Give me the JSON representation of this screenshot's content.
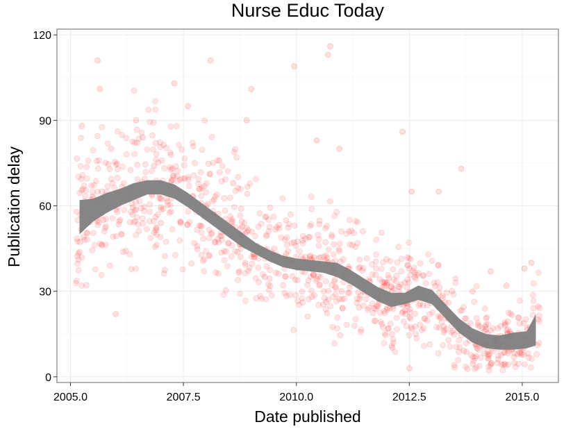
{
  "chart_data": {
    "type": "scatter",
    "title": "Nurse Educ Today",
    "xlabel": "Date published",
    "ylabel": "Publication delay",
    "xlim": [
      2004.7,
      2015.8
    ],
    "ylim": [
      -2,
      122
    ],
    "xticks": [
      2005.0,
      2007.5,
      2010.0,
      2012.5,
      2015.0
    ],
    "xtick_labels": [
      "2005.0",
      "2007.5",
      "2010.0",
      "2012.5",
      "2015.0"
    ],
    "yticks": [
      0,
      30,
      60,
      90,
      120
    ],
    "ytick_labels": [
      "0",
      "30",
      "60",
      "90",
      "120"
    ],
    "grid": true,
    "legend": "none",
    "colors": {
      "points": "#ff0000",
      "smooth": "#808080",
      "panel_border": "#7f7f7f",
      "grid": "#ebebeb"
    },
    "smooth": {
      "x": [
        2005.2,
        2005.5,
        2005.8,
        2006.1,
        2006.4,
        2006.7,
        2007.0,
        2007.3,
        2007.6,
        2007.9,
        2008.2,
        2008.5,
        2008.8,
        2009.1,
        2009.4,
        2009.7,
        2010.0,
        2010.3,
        2010.6,
        2010.9,
        2011.2,
        2011.5,
        2011.8,
        2012.1,
        2012.4,
        2012.7,
        2013.0,
        2013.3,
        2013.6,
        2013.9,
        2014.2,
        2014.5,
        2014.8,
        2015.1,
        2015.3
      ],
      "y": [
        56,
        58.5,
        61,
        63,
        65,
        66.5,
        66.5,
        65,
        62,
        58.5,
        55,
        51.5,
        48,
        45,
        42.5,
        40.5,
        39.5,
        39,
        38.5,
        37.5,
        35,
        32,
        29,
        27,
        27.5,
        29.5,
        28,
        23,
        18,
        14.5,
        12.5,
        12,
        12.5,
        13,
        16.5
      ],
      "lower": [
        50,
        54.5,
        57.5,
        60,
        62,
        64,
        64,
        62.5,
        59.5,
        56,
        52.5,
        49,
        45.5,
        43,
        40.5,
        38.5,
        37.5,
        37,
        36.5,
        35,
        32.5,
        29.5,
        26.5,
        24.5,
        25.5,
        27,
        25.5,
        20.5,
        15.5,
        12,
        10,
        9.5,
        9.5,
        10,
        11
      ],
      "upper": [
        62,
        62.5,
        64.5,
        66,
        68,
        69,
        69,
        67.5,
        64.5,
        61,
        57.5,
        54,
        50.5,
        47,
        44.5,
        42.5,
        41.5,
        41,
        40.5,
        40,
        37.5,
        34.5,
        31.5,
        29.5,
        29.5,
        32,
        30.5,
        25.5,
        20.5,
        17,
        15,
        14.5,
        15.5,
        16,
        22
      ]
    },
    "points": {
      "x": [
        2005.25,
        2005.6,
        2005.65,
        2005.9,
        2006.45,
        2006.6,
        2006.85,
        2007.3,
        2007.6,
        2008.1,
        2008.6,
        2008.9,
        2009.0,
        2009.95,
        2010.45,
        2010.7,
        2010.75,
        2010.95,
        2012.35,
        2012.5,
        2012.55,
        2013.15,
        2013.65,
        2013.9,
        2014.3,
        2014.65,
        2015.05,
        2015.2,
        2006.0,
        2007.0,
        2008.0,
        2009.3,
        2010.2,
        2011.0,
        2012.0,
        2013.5,
        2014.0,
        2014.9
      ],
      "y": [
        88,
        111,
        101,
        80,
        90,
        84,
        74,
        103,
        95,
        111,
        68,
        90,
        101,
        109,
        83,
        113,
        116,
        80,
        86,
        3,
        65,
        65,
        73,
        30,
        37,
        32,
        38,
        40,
        22,
        54,
        60,
        35,
        42,
        30,
        28,
        20,
        10,
        8
      ]
    },
    "point_cloud": {
      "x_range": [
        2005.1,
        2015.4
      ],
      "count": 1100,
      "spread": 9
    }
  }
}
